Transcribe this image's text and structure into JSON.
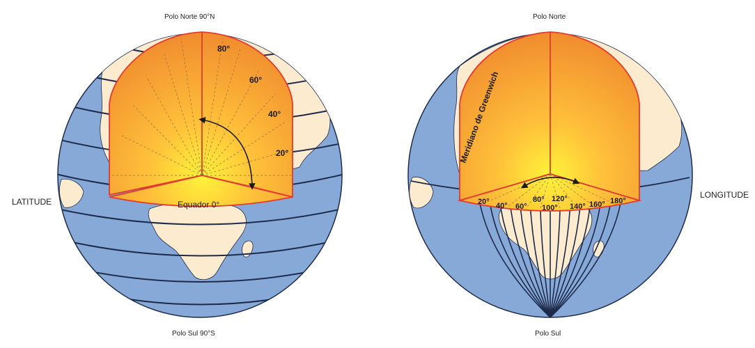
{
  "latitude_globe": {
    "top_label": "Polo Norte 90°N",
    "bottom_label": "Polo Sul 90°S",
    "side_label": "LATITUDE",
    "equator_label": "Equador 0°",
    "degree_labels": [
      "80°",
      "60°",
      "40°",
      "20°"
    ]
  },
  "longitude_globe": {
    "top_label": "Polo Norte",
    "bottom_label": "Polo Sul",
    "side_label": "LONGITUDE",
    "meridian_label": "Meridiano de Greenwich",
    "degree_labels": [
      "20°",
      "40°",
      "60°",
      "80°",
      "100°",
      "120°",
      "140°",
      "160°",
      "180°"
    ]
  },
  "colors": {
    "ocean": "#86a9d8",
    "land": "#fdebd0",
    "cut_gradient_top": "#f28a30",
    "cut_gradient_center": "#ffe82a",
    "cut_outline": "#e23a30",
    "grid_line": "#1e2a4a"
  }
}
